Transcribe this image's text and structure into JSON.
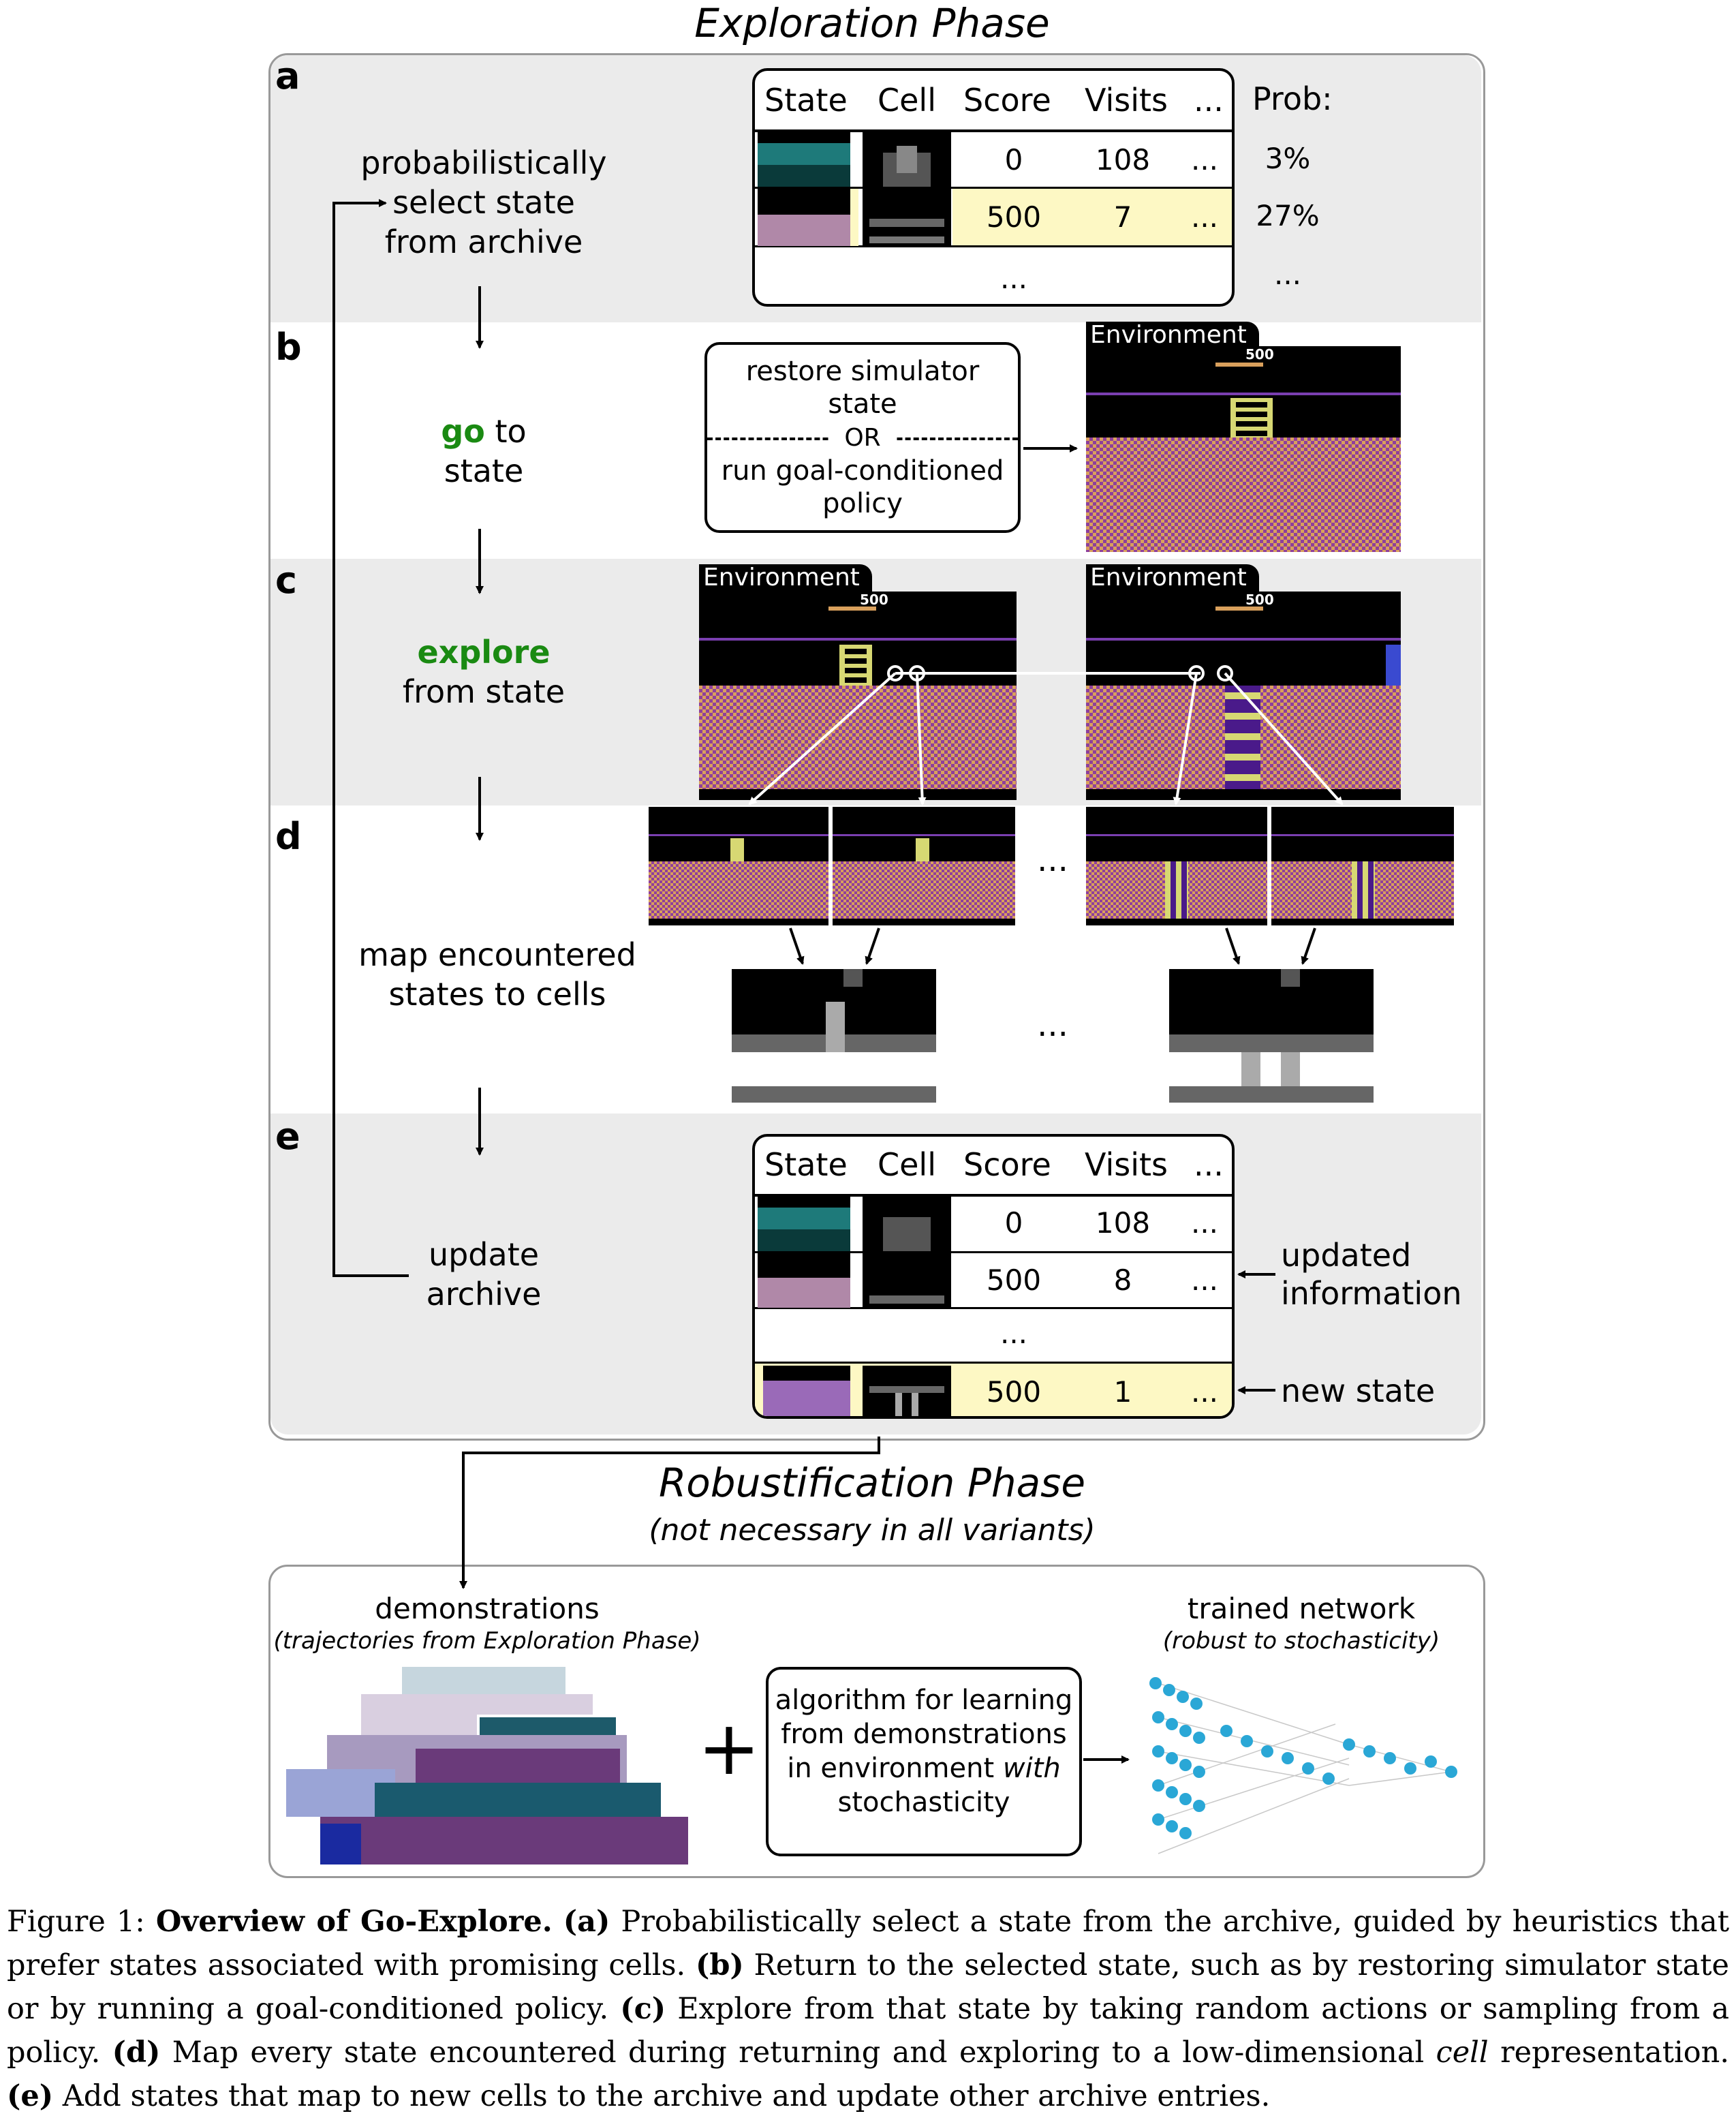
{
  "exploration": {
    "title": "Exploration Phase",
    "steps": {
      "a": {
        "letter": "a",
        "label": "probabilistically\nselect state\nfrom archive"
      },
      "b": {
        "letter": "b",
        "label_green": "go",
        "label_rest": " to\nstate"
      },
      "c": {
        "letter": "c",
        "label_green": "explore",
        "label_rest": "from state"
      },
      "d": {
        "letter": "d",
        "label": "map encountered\nstates to cells"
      },
      "e": {
        "letter": "e",
        "label": "update\narchive"
      }
    },
    "archive_a": {
      "headers": [
        "State",
        "Cell",
        "Score",
        "Visits",
        "..."
      ],
      "prob_header": "Prob:",
      "rows": [
        {
          "score": "0",
          "visits": "108",
          "more": "...",
          "prob": "3%"
        },
        {
          "score": "500",
          "visits": "7",
          "more": "...",
          "prob": "27%"
        }
      ],
      "tail": "...",
      "prob_tail": "..."
    },
    "goto_box": {
      "line1": "restore simulator",
      "line2": "state",
      "divider": "OR",
      "line3": "run goal-conditioned",
      "line4": "policy"
    },
    "env_label": "Environment",
    "env_score": "500",
    "dots": "...",
    "archive_e": {
      "headers": [
        "State",
        "Cell",
        "Score",
        "Visits",
        "..."
      ],
      "rows": [
        {
          "score": "0",
          "visits": "108",
          "more": "..."
        },
        {
          "score": "500",
          "visits": "8",
          "more": "..."
        },
        {
          "score": "500",
          "visits": "1",
          "more": "..."
        }
      ],
      "tail": "...",
      "updated_note": "updated\ninformation",
      "new_note": "new state"
    }
  },
  "robust": {
    "title": "Robustification Phase",
    "subtitle": "(not necessary in all variants)",
    "demo_label": "demonstrations",
    "demo_sub": "(trajectories from Exploration Phase)",
    "plus": "+",
    "algo_box": [
      "algorithm for learning",
      "from demonstrations",
      "in environment ",
      "with",
      "stochasticity"
    ],
    "net_label": "trained network",
    "net_sub": "(robust to stochasticity)"
  },
  "caption": {
    "prefix": "Figure 1: ",
    "bold_title": "Overview of Go-Explore.",
    "a_tag": "(a)",
    "a_text": " Probabilistically select a state from the archive, guided by heuristics that prefer states associated with promising cells. ",
    "b_tag": "(b)",
    "b_text": " Return to the selected state, such as by restoring simulator state or by running a goal-conditioned policy. ",
    "c_tag": "(c)",
    "c_text": " Explore from that state by taking random actions or sampling from a policy. ",
    "d_tag": "(d)",
    "d_text1": " Map every state encountered during returning and exploring to a low-dimensional ",
    "d_cell": "cell",
    "d_text2": " representation. ",
    "e_tag": "(e)",
    "e_text": " Add states that map to new cells to the archive and update other archive entries."
  },
  "colors": {
    "panel": "#ebebeb",
    "highlight": "#fdf8c4",
    "green": "#1a8a12",
    "checker1": "#8e3f9c",
    "checker2": "#d9a05c",
    "ladder": "#d7d873",
    "node": "#2aa7d6"
  }
}
